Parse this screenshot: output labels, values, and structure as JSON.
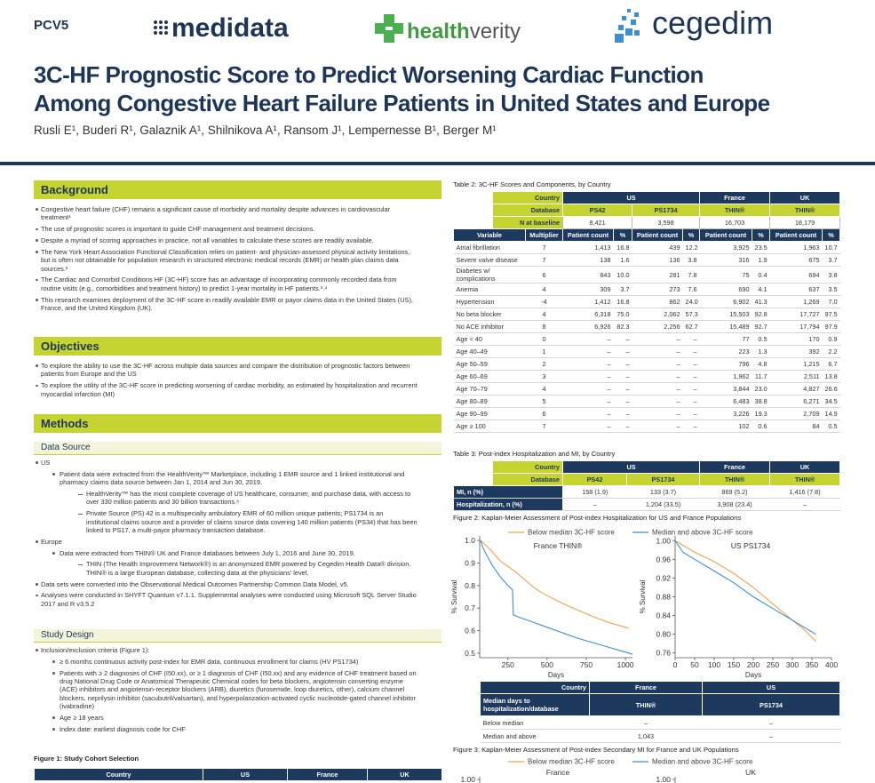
{
  "header": {
    "code": "PCV5",
    "logos": {
      "medidata": "medidata",
      "healthverity": [
        "health",
        "verity"
      ],
      "cegedim": "cegedim"
    },
    "title": [
      "3C-HF Prognostic Score to Predict Worsening Cardiac Function",
      "Among Congestive Heart Failure Patients in United States and Europe"
    ],
    "authors": "Rusli E¹, Buderi R¹, Galaznik A¹, Shilnikova A¹, Ransom J¹, Lempernesse B¹, Berger M¹"
  },
  "background": {
    "heading": "Background",
    "items": [
      {
        "level": 1,
        "text": "Congestive heart failure (CHF) remains a significant cause of morbidity and mortality despite advances in cardiovascular treatment¹"
      },
      {
        "level": 1,
        "text": "The use of prognostic scores is important to guide CHF management and treatment decisions."
      },
      {
        "level": 1,
        "text": "Despite a myriad of scoring approaches in practice, not all variables to calculate these scores are readily available."
      },
      {
        "level": 1,
        "text": "The New York Heart Association Functional Classification relies on patient- and physician-assessed physical activity limitations, but is often not obtainable for population research in structured electronic medical records (EMR) or health plan claims data sources.²"
      },
      {
        "level": 1,
        "text": "The Cardiac and Comorbid Conditions HF (3C-HF) score has an advantage of incorporating commonly recorded data from routine visits (e.g., comorbidities and treatment history) to predict 1-year mortality in HF patients.³˒⁴"
      },
      {
        "level": 1,
        "text": "This research examines deployment of the 3C-HF score in readily available EMR or payor claims data in the United States (US), France, and the United Kingdom (UK)."
      }
    ]
  },
  "objectives": {
    "heading": "Objectives",
    "items": [
      {
        "level": 1,
        "text": "To explore the ability to use the 3C-HF across multiple data sources and compare the distribution of prognostic factors between patients from Europe and the US"
      },
      {
        "level": 1,
        "text": "To explore the utility of the 3C-HF score in predicting worsening of cardiac morbidity, as estimated by hospitalization and recurrent myocardial infarction (MI)"
      }
    ]
  },
  "methods": {
    "heading": "Methods",
    "subsections": [
      {
        "heading": "Data Source",
        "items": [
          {
            "level": 1,
            "text": "US"
          },
          {
            "level": 2,
            "text": "Patient data were extracted from the HealthVerity™ Marketplace, including 1 EMR source and 1 linked institutional and pharmacy claims data source between Jan 1, 2014 and Jun 30, 2019."
          },
          {
            "level": 3,
            "text": "HealthVerity™ has the most complete coverage of US healthcare, consumer, and purchase data, with access to over 330 million patients and 30 billion transactions.⁶"
          },
          {
            "level": 3,
            "text": "Private Source (PS) 42 is a multispecialty ambulatory EMR of 60 million unique patients; PS1734 is an institutional claims source and a provider of claims source data covering 140 million patients (PS34) that has been linked to PS17, a multi-payor pharmacy transaction database."
          },
          {
            "level": 1,
            "text": "Europe"
          },
          {
            "level": 2,
            "text": "Data were extracted from THIN® UK and France databases between July 1, 2016 and June 30, 2019."
          },
          {
            "level": 3,
            "text": "THIN (The Health Improvement Network®) is an anonymized EMR powered by Cegedim Health Data® division. THIN® is a large European database, collecting data at the physicians' level."
          },
          {
            "level": 1,
            "text": "Data sets were converted into the Observational Medical Outcomes Partnership Common Data Model, v5."
          },
          {
            "level": 1,
            "text": "Analyses were conducted in SHYFT Quantum v7.1.1. Supplemental analyses were conducted using Microsoft SQL Server Studio 2017 and R v3.5.2"
          }
        ]
      },
      {
        "heading": "Study Design",
        "items": [
          {
            "level": 1,
            "text": "Inclusion/exclusion criteria (Figure 1):"
          },
          {
            "level": 2,
            "text": "≥ 6 months continuous activity post-index for EMR data, continuous enrollment for claims (HV PS1734)"
          },
          {
            "level": 2,
            "text": "Patients with ≥ 2 diagnoses of CHF (I50.xx), or ≥ 1 diagnosis of CHF (I50.xx) and any evidence of CHF treatment based on drug National Drug Code or Anatomical Therapeutic Chemical codes for beta blockers, angiotensin converting enzyme (ACE) inhibitors and angiotensin-receptor blockers (ARB), diuretics (furosemide, loop diuretics, other), calcium channel blockers, neprilysin inhibitor (sacubutril/valsartan), and hyperpolarization-activated cyclic nucleotide-gated channel inhibitor (ivabradine)"
          },
          {
            "level": 2,
            "text": "Age ≥ 18 years"
          },
          {
            "level": 2,
            "text": "Index date: earliest diagnosis code for CHF"
          }
        ]
      }
    ]
  },
  "figure1": {
    "caption": "Figure 1: Study Cohort Selection",
    "header": [
      "Country",
      "US",
      "France",
      "UK"
    ]
  },
  "table2": {
    "caption": "Table 2: 3C-HF Scores and Components, by Country",
    "country_row": {
      "label": "Country",
      "cells": [
        "US",
        "France",
        "UK"
      ]
    },
    "database_row": {
      "label": "Database",
      "cells": [
        "PS42",
        "PS1734",
        "THIN®",
        "THIN®"
      ]
    },
    "baseline_row": {
      "label": "N at baseline",
      "cells": [
        "8,421",
        "3,598",
        "16,703",
        "18,179"
      ]
    },
    "columns": [
      "Variable",
      "Multiplier",
      "Patient count",
      "%",
      "Patient count",
      "%",
      "Patient count",
      "%",
      "Patient count",
      "%"
    ],
    "rows": [
      [
        "Atrial fibrillation",
        "7",
        "1,413",
        "16.8",
        "439",
        "12.2",
        "3,925",
        "23.5",
        "1,963",
        "10.7"
      ],
      [
        "Severe valve disease",
        "7",
        "138",
        "1.6",
        "136",
        "3.8",
        "316",
        "1.9",
        "675",
        "3.7"
      ],
      [
        "Diabetes w/ complications",
        "6",
        "843",
        "10.0",
        "281",
        "7.8",
        "75",
        "0.4",
        "694",
        "3.8"
      ],
      [
        "Anemia",
        "4",
        "309",
        "3.7",
        "273",
        "7.6",
        "690",
        "4.1",
        "637",
        "3.5"
      ],
      [
        "Hypertension",
        "-4",
        "1,412",
        "16.8",
        "862",
        "24.0",
        "6,902",
        "41.3",
        "1,269",
        "7.0"
      ],
      [
        "No beta blocker",
        "4",
        "6,318",
        "75.0",
        "2,062",
        "57.3",
        "15,503",
        "92.8",
        "17,727",
        "97.5"
      ],
      [
        "No ACE inhibitor",
        "8",
        "6,926",
        "82.3",
        "2,256",
        "62.7",
        "15,489",
        "92.7",
        "17,794",
        "97.9"
      ],
      [
        "Age < 40",
        "0",
        "–",
        "–",
        "–",
        "–",
        "77",
        "0.5",
        "170",
        "0.9"
      ],
      [
        "Age 40–49",
        "1",
        "–",
        "–",
        "–",
        "–",
        "223",
        "1.3",
        "392",
        "2.2"
      ],
      [
        "Age 50–59",
        "2",
        "–",
        "–",
        "–",
        "–",
        "796",
        "4.8",
        "1,215",
        "6.7"
      ],
      [
        "Age 60–69",
        "3",
        "–",
        "–",
        "–",
        "–",
        "1,962",
        "11.7",
        "2,511",
        "13.8"
      ],
      [
        "Age 70–79",
        "4",
        "–",
        "–",
        "–",
        "–",
        "3,844",
        "23.0",
        "4,827",
        "26.6"
      ],
      [
        "Age 80–89",
        "5",
        "–",
        "–",
        "–",
        "–",
        "6,483",
        "38.8",
        "6,271",
        "34.5"
      ],
      [
        "Age 90–99",
        "6",
        "–",
        "–",
        "–",
        "–",
        "3,226",
        "19.3",
        "2,709",
        "14.9"
      ],
      [
        "Age ≥ 100",
        "7",
        "–",
        "–",
        "–",
        "–",
        "102",
        "0.6",
        "84",
        "0.5"
      ]
    ]
  },
  "table3": {
    "caption": "Table 3: Post-index Hospitalization and MI, by Country",
    "country_row": {
      "label": "Country",
      "cells": [
        "US",
        "France",
        "UK"
      ]
    },
    "database_row": {
      "label": "Database",
      "cells": [
        "PS42",
        "PS1734",
        "THIN®",
        "THIN®"
      ]
    },
    "rows": [
      [
        "MI, n (%)",
        "158 (1.9)",
        "133 (3.7)",
        "869 (5.2)",
        "1,416 (7.8)"
      ],
      [
        "Hospitalization, n (%)",
        "–",
        "1,204 (33.5)",
        "3,908 (23.4)",
        "–"
      ]
    ]
  },
  "figure2": {
    "caption": "Figure 2: Kaplan-Meier Assessment of Post-index Hospitalization for US and France Populations",
    "legend": [
      {
        "name": "Below median 3C-HF score",
        "color": "#f4a34b"
      },
      {
        "name": "Median and above 3C-HF score",
        "color": "#3d8fd1"
      }
    ],
    "panels": [
      {
        "type": "line",
        "title": "France THIN®",
        "xlabel": "Days",
        "ylabel": "% Survival",
        "xlim": [
          70,
          1045
        ],
        "ylim": [
          0.48,
          1.02
        ],
        "xticks": [
          250,
          500,
          750,
          1000
        ],
        "yticks": [
          0.5,
          0.6,
          0.7,
          0.8,
          0.9,
          {
            "value": 1,
            "label": "1.0"
          }
        ],
        "series": [
          {
            "x": [
              75,
              100,
              150,
              200,
              300,
              400,
              450,
              500,
              600,
              700,
              800,
              900,
              1000,
              1020
            ],
            "values": [
              1.0,
              0.985,
              0.95,
              0.91,
              0.86,
              0.8,
              0.775,
              0.755,
              0.72,
              0.69,
              0.66,
              0.635,
              0.615,
              0.61
            ]
          },
          {
            "x": [
              75,
              90,
              110,
              150,
              200,
              250,
              280,
              285,
              300,
              400,
              500,
              600,
              700,
              800,
              900,
              1000,
              1045
            ],
            "values": [
              1.0,
              0.97,
              0.94,
              0.89,
              0.84,
              0.8,
              0.78,
              0.67,
              0.665,
              0.64,
              0.615,
              0.59,
              0.565,
              0.545,
              0.525,
              0.505,
              0.495
            ]
          }
        ]
      },
      {
        "type": "line",
        "title": "US PS1734",
        "xlabel": "Days",
        "ylabel": "% Survival",
        "xlim": [
          0,
          400
        ],
        "ylim": [
          0.75,
          1.01
        ],
        "xticks": [
          0,
          50,
          100,
          150,
          200,
          250,
          300,
          350,
          400
        ],
        "yticks": [
          0.76,
          {
            "value": 0.8,
            "label": "0.80"
          },
          0.84,
          0.88,
          0.92,
          0.96,
          {
            "value": 1,
            "label": "1.00"
          }
        ],
        "series": [
          {
            "x": [
              0,
              20,
              50,
              100,
              150,
              200,
              250,
              300,
              330,
              360
            ],
            "values": [
              1.0,
              0.99,
              0.975,
              0.955,
              0.93,
              0.9,
              0.865,
              0.83,
              0.81,
              0.785
            ]
          },
          {
            "x": [
              0,
              20,
              50,
              100,
              150,
              200,
              250,
              300,
              330,
              360
            ],
            "values": [
              1.0,
              0.975,
              0.96,
              0.935,
              0.91,
              0.88,
              0.855,
              0.83,
              0.815,
              0.8
            ]
          }
        ]
      }
    ]
  },
  "median_table": {
    "country_row": {
      "label": "Country",
      "cells": [
        "France",
        "US"
      ]
    },
    "database_row": {
      "label": "Median days to hospitalization/database",
      "cells": [
        "THIN®",
        "PS1734"
      ]
    },
    "rows": [
      [
        "Below median",
        "–",
        "–"
      ],
      [
        "Median and above",
        "1,043",
        "–"
      ]
    ]
  },
  "figure3": {
    "caption": "Figure 3: Kaplan-Meier Assessment of Post-index Secondary MI for France and UK Populations",
    "legend": [
      {
        "name": "Below median 3C-HF score",
        "color": "#f4a34b"
      },
      {
        "name": "Median and above 3C-HF score",
        "color": "#3d8fd1"
      }
    ],
    "panels": [
      {
        "title": "France",
        "yticks": [
          {
            "value": 1,
            "label": "1.00"
          }
        ]
      },
      {
        "title": "UK",
        "yticks": [
          {
            "value": 1,
            "label": "1.00"
          }
        ]
      }
    ]
  }
}
